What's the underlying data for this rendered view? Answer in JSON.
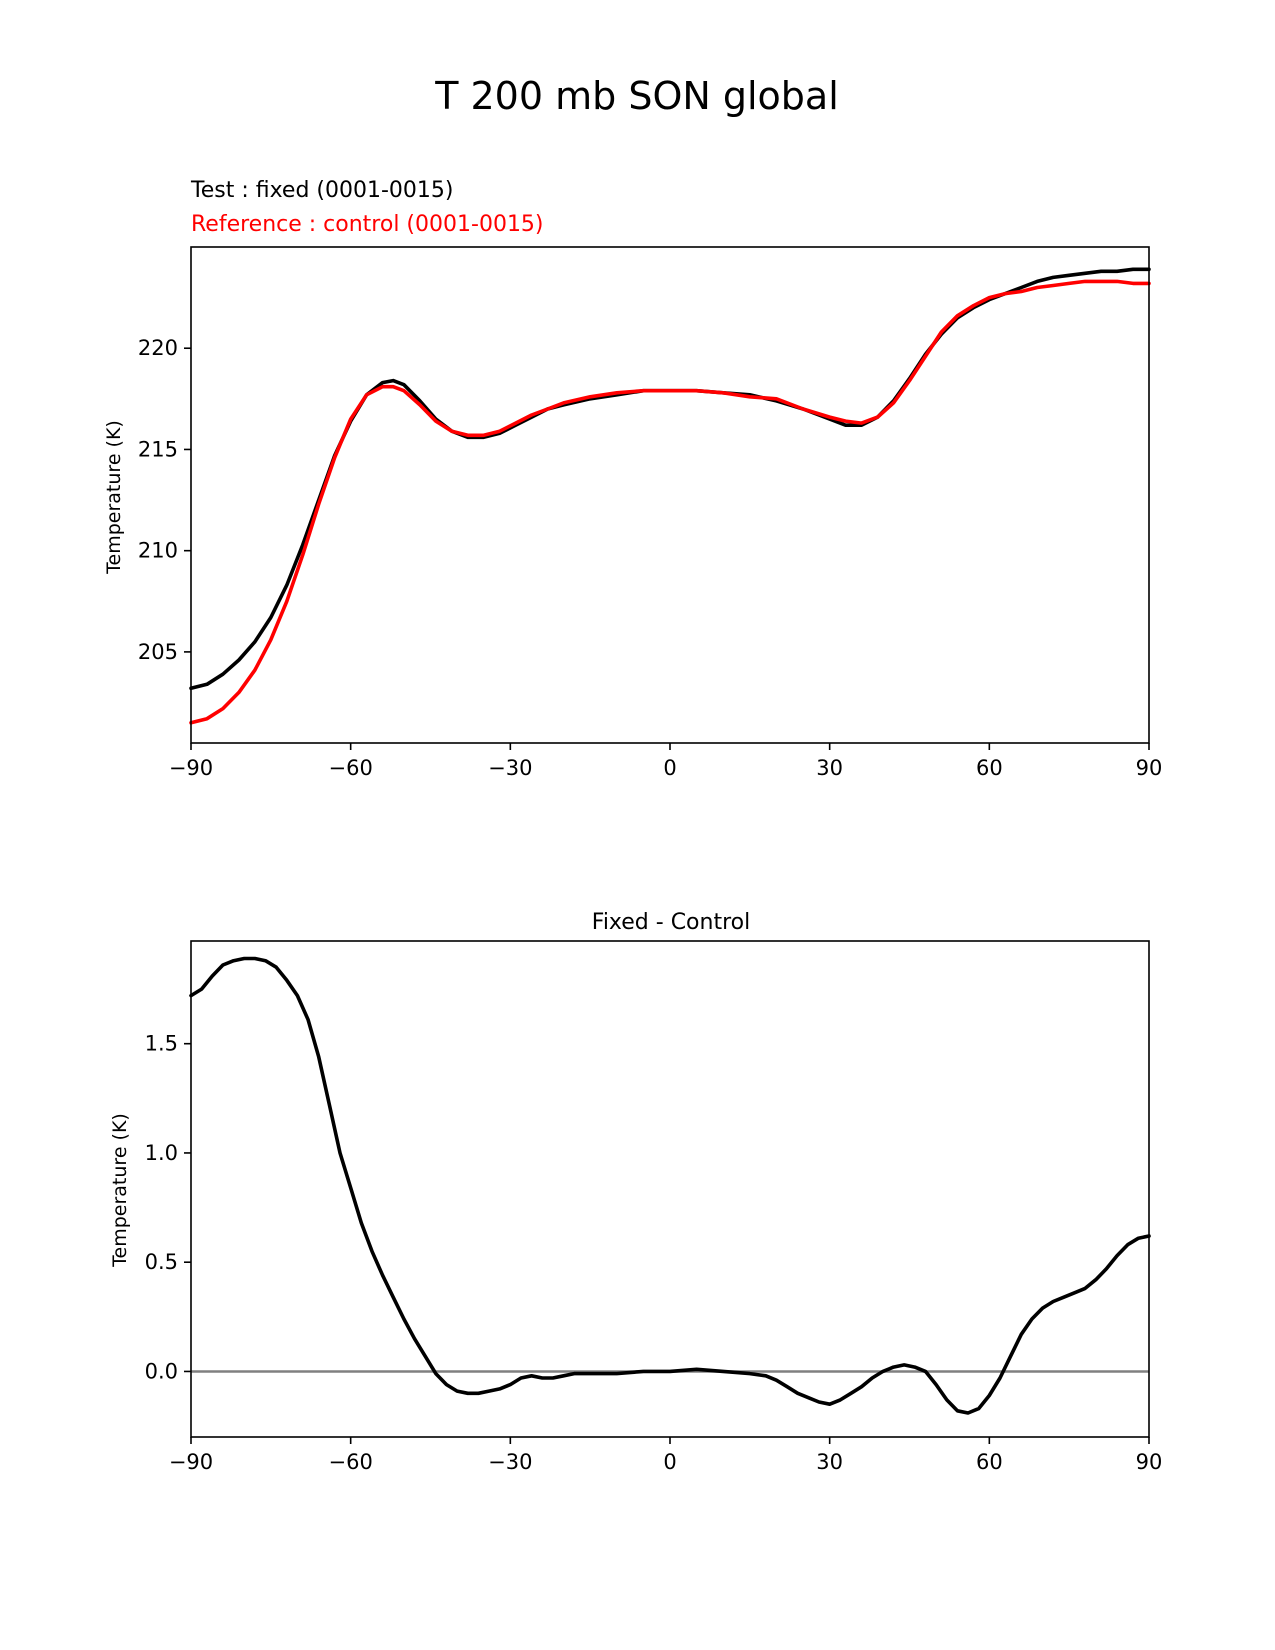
{
  "figure": {
    "title": "T 200 mb SON global"
  },
  "top_panel": {
    "test_label": "Test : fixed (0001-0015)",
    "reference_label": "Reference : control (0001-0015)"
  },
  "bottom_panel": {
    "title": "Fixed - Control"
  },
  "colors": {
    "test": "#000000",
    "reference": "#ff0000",
    "zero_line": "#808080"
  },
  "chart_data": [
    {
      "type": "line",
      "ylabel": "Temperature (K)",
      "xlabel": "",
      "xlim": [
        -90,
        90
      ],
      "ylim": [
        200.5,
        225
      ],
      "xticks": [
        -90,
        -60,
        -30,
        0,
        30,
        60,
        90
      ],
      "xtick_labels": [
        "−90",
        "−60",
        "−30",
        "0",
        "30",
        "60",
        "90"
      ],
      "yticks": [
        205,
        210,
        215,
        220
      ],
      "ytick_labels": [
        "205",
        "210",
        "215",
        "220"
      ],
      "grid": false,
      "series": [
        {
          "name": "Test : fixed (0001-0015)",
          "color": "#000000",
          "x": [
            -90,
            -87,
            -84,
            -81,
            -78,
            -75,
            -72,
            -69,
            -66,
            -63,
            -60,
            -57,
            -54,
            -52,
            -50,
            -47,
            -44,
            -41,
            -38,
            -35,
            -32,
            -29,
            -26,
            -23,
            -20,
            -15,
            -10,
            -5,
            0,
            5,
            10,
            15,
            20,
            25,
            30,
            33,
            36,
            39,
            42,
            45,
            48,
            51,
            54,
            57,
            60,
            63,
            66,
            69,
            72,
            75,
            78,
            81,
            84,
            87,
            90
          ],
          "y": [
            203.2,
            203.4,
            203.9,
            204.6,
            205.5,
            206.7,
            208.3,
            210.3,
            212.5,
            214.7,
            216.4,
            217.7,
            218.3,
            218.4,
            218.2,
            217.4,
            216.5,
            215.9,
            215.6,
            215.6,
            215.8,
            216.2,
            216.6,
            217.0,
            217.2,
            217.5,
            217.7,
            217.9,
            217.9,
            217.9,
            217.8,
            217.7,
            217.4,
            217.0,
            216.5,
            216.2,
            216.2,
            216.6,
            217.4,
            218.5,
            219.7,
            220.7,
            221.5,
            222.0,
            222.4,
            222.7,
            223.0,
            223.3,
            223.5,
            223.6,
            223.7,
            223.8,
            223.8,
            223.9,
            223.9
          ]
        },
        {
          "name": "Reference : control (0001-0015)",
          "color": "#ff0000",
          "x": [
            -90,
            -87,
            -84,
            -81,
            -78,
            -75,
            -72,
            -69,
            -66,
            -63,
            -60,
            -57,
            -54,
            -52,
            -50,
            -47,
            -44,
            -41,
            -38,
            -35,
            -32,
            -29,
            -26,
            -23,
            -20,
            -15,
            -10,
            -5,
            0,
            5,
            10,
            15,
            20,
            25,
            30,
            33,
            36,
            39,
            42,
            45,
            48,
            51,
            54,
            57,
            60,
            63,
            66,
            69,
            72,
            75,
            78,
            81,
            84,
            87,
            90
          ],
          "y": [
            201.5,
            201.7,
            202.2,
            203.0,
            204.1,
            205.6,
            207.5,
            209.8,
            212.3,
            214.6,
            216.5,
            217.7,
            218.1,
            218.1,
            217.9,
            217.2,
            216.4,
            215.9,
            215.7,
            215.7,
            215.9,
            216.3,
            216.7,
            217.0,
            217.3,
            217.6,
            217.8,
            217.9,
            217.9,
            217.9,
            217.8,
            217.6,
            217.5,
            217.0,
            216.6,
            216.4,
            216.3,
            216.6,
            217.3,
            218.4,
            219.6,
            220.8,
            221.6,
            222.1,
            222.5,
            222.7,
            222.8,
            223.0,
            223.1,
            223.2,
            223.3,
            223.3,
            223.3,
            223.2,
            223.2
          ]
        }
      ]
    },
    {
      "type": "line",
      "title": "Fixed - Control",
      "ylabel": "Temperature (K)",
      "xlabel": "",
      "xlim": [
        -90,
        90
      ],
      "ylim": [
        -0.3,
        1.97
      ],
      "xticks": [
        -90,
        -60,
        -30,
        0,
        30,
        60,
        90
      ],
      "xtick_labels": [
        "−90",
        "−60",
        "−30",
        "0",
        "30",
        "60",
        "90"
      ],
      "yticks": [
        0.0,
        0.5,
        1.0,
        1.5
      ],
      "ytick_labels": [
        "0.0",
        "0.5",
        "1.0",
        "1.5"
      ],
      "grid": false,
      "reference_line": 0.0,
      "series": [
        {
          "color": "#000000",
          "x": [
            -90,
            -88,
            -86,
            -84,
            -82,
            -80,
            -78,
            -76,
            -74,
            -72,
            -70,
            -68,
            -66,
            -64,
            -62,
            -60,
            -58,
            -56,
            -54,
            -52,
            -50,
            -48,
            -46,
            -44,
            -42,
            -40,
            -38,
            -36,
            -34,
            -32,
            -30,
            -28,
            -26,
            -24,
            -22,
            -20,
            -18,
            -16,
            -14,
            -12,
            -10,
            -5,
            0,
            5,
            10,
            15,
            18,
            20,
            22,
            24,
            26,
            28,
            30,
            32,
            34,
            36,
            38,
            40,
            42,
            44,
            46,
            48,
            50,
            52,
            54,
            56,
            58,
            60,
            62,
            64,
            66,
            68,
            70,
            72,
            74,
            76,
            78,
            80,
            82,
            84,
            86,
            88,
            90
          ],
          "y": [
            1.72,
            1.75,
            1.81,
            1.86,
            1.88,
            1.89,
            1.89,
            1.88,
            1.85,
            1.79,
            1.72,
            1.61,
            1.44,
            1.22,
            1.0,
            0.84,
            0.68,
            0.55,
            0.44,
            0.34,
            0.24,
            0.15,
            0.07,
            -0.01,
            -0.06,
            -0.09,
            -0.1,
            -0.1,
            -0.09,
            -0.08,
            -0.06,
            -0.03,
            -0.02,
            -0.03,
            -0.03,
            -0.02,
            -0.01,
            -0.01,
            -0.01,
            -0.01,
            -0.01,
            0.0,
            0.0,
            0.01,
            0.0,
            -0.01,
            -0.02,
            -0.04,
            -0.07,
            -0.1,
            -0.12,
            -0.14,
            -0.15,
            -0.13,
            -0.1,
            -0.07,
            -0.03,
            0.0,
            0.02,
            0.03,
            0.02,
            0.0,
            -0.06,
            -0.13,
            -0.18,
            -0.19,
            -0.17,
            -0.11,
            -0.03,
            0.07,
            0.17,
            0.24,
            0.29,
            0.32,
            0.34,
            0.36,
            0.38,
            0.42,
            0.47,
            0.53,
            0.58,
            0.61,
            0.62
          ]
        }
      ]
    }
  ]
}
